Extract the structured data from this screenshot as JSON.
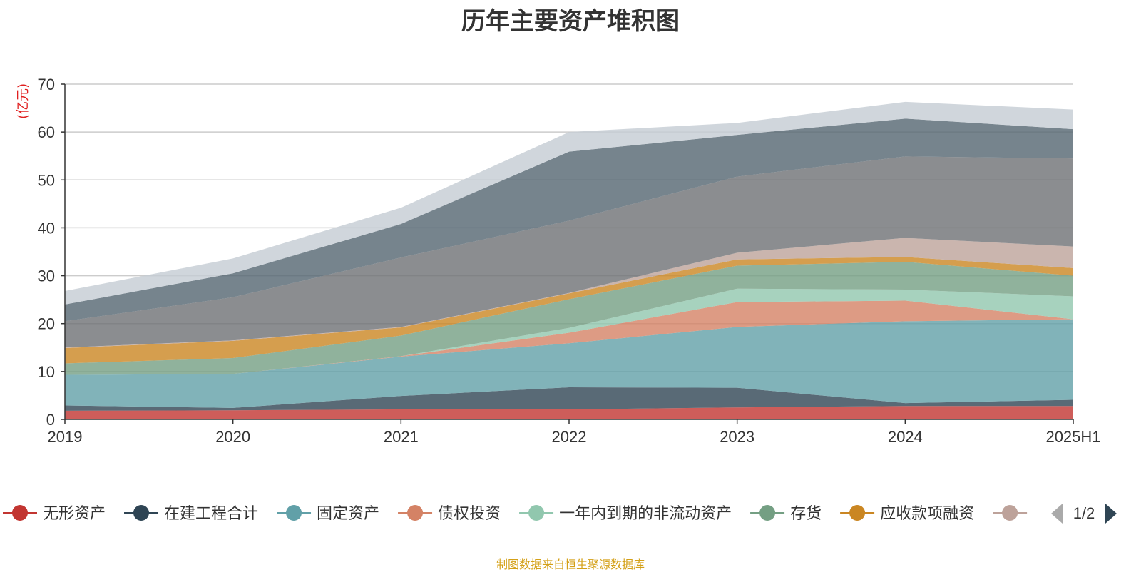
{
  "chart_data": {
    "type": "area",
    "title": "历年主要资产堆积图",
    "ylabel": "(亿元)",
    "xlabel": "",
    "categories": [
      "2019",
      "2020",
      "2021",
      "2022",
      "2023",
      "2024",
      "2025H1"
    ],
    "ylim": [
      0,
      70
    ],
    "yticks": [
      0,
      10,
      20,
      30,
      40,
      50,
      60,
      70
    ],
    "stacked": true,
    "grid": true,
    "legend_position": "bottom",
    "series": [
      {
        "name": "无形资产",
        "color": "#c23531",
        "values": [
          1.8,
          1.9,
          2.1,
          2.1,
          2.5,
          2.8,
          2.8
        ]
      },
      {
        "name": "在建工程合计",
        "color": "#2f4554",
        "values": [
          1.1,
          0.5,
          2.8,
          4.6,
          4.1,
          0.6,
          1.3
        ]
      },
      {
        "name": "固定资产",
        "color": "#61a0a8",
        "values": [
          6.4,
          7.1,
          8.2,
          9.2,
          12.7,
          17.1,
          16.8
        ]
      },
      {
        "name": "债权投资",
        "color": "#d48265",
        "values": [
          0,
          0,
          0.1,
          2.2,
          5.2,
          4.3,
          0
        ]
      },
      {
        "name": "一年内到期的非流动资产",
        "color": "#91c7ae",
        "values": [
          0,
          0,
          0,
          1.0,
          2.8,
          2.3,
          4.8
        ]
      },
      {
        "name": "存货",
        "color": "#749f83",
        "values": [
          2.4,
          3.3,
          4.3,
          6.0,
          4.8,
          5.8,
          4.3
        ]
      },
      {
        "name": "应收款项融资",
        "color": "#ca8622",
        "values": [
          3.2,
          3.6,
          1.7,
          1.2,
          1.3,
          1.0,
          1.6
        ]
      },
      {
        "name": "",
        "color": "#bda29a",
        "values": [
          0.1,
          0.1,
          0.1,
          0.1,
          1.4,
          4.0,
          4.5
        ]
      },
      {
        "name": "",
        "color": "#6e7074",
        "values": [
          5.5,
          9.0,
          14.5,
          15.1,
          15.9,
          17.0,
          18.4
        ]
      },
      {
        "name": "",
        "color": "#546570",
        "values": [
          3.5,
          5.0,
          7.0,
          14.4,
          8.7,
          7.9,
          6.1
        ]
      },
      {
        "name": "",
        "color": "#c4ccd3",
        "values": [
          2.8,
          3.1,
          3.4,
          4.1,
          2.5,
          3.5,
          4.1
        ]
      }
    ]
  },
  "legend": {
    "page_indicator": "1/2",
    "partial_item_color": "#bda29a"
  },
  "footer": {
    "source_note": "制图数据来自恒生聚源数据库"
  }
}
